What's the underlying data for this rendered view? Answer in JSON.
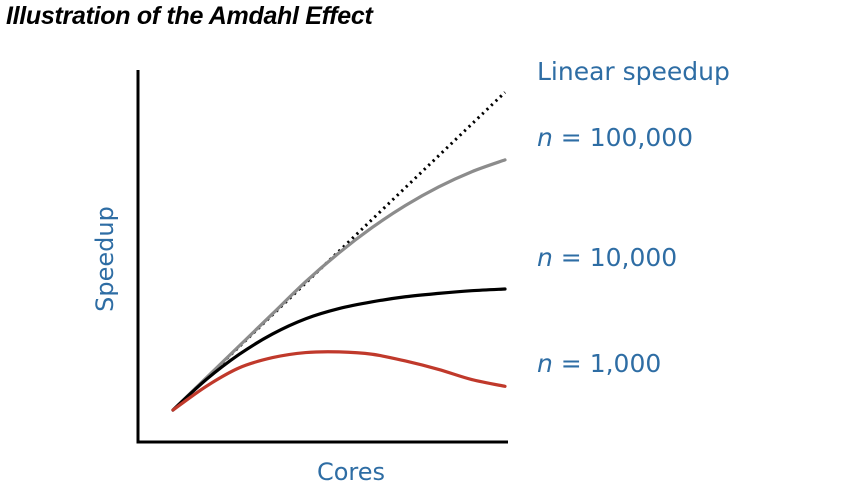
{
  "title": "Illustration of the Amdahl Effect",
  "chart_data": {
    "type": "line",
    "title": "Illustration of the Amdahl Effect",
    "xlabel": "Cores",
    "ylabel": "Speedup",
    "x_ticks": [],
    "y_ticks": [],
    "xlim": [
      0,
      100
    ],
    "ylim": [
      0,
      100
    ],
    "grid": false,
    "legend": "inline-right",
    "colors": {
      "text": "#2e6da4",
      "axis": "#000000"
    },
    "series": [
      {
        "name": "Linear speedup",
        "label_lines": [
          "Linear speedup"
        ],
        "color": "#000000",
        "dash": "dotted",
        "points": [
          [
            0,
            0
          ],
          [
            50,
            47
          ],
          [
            100,
            94
          ]
        ]
      },
      {
        "name": "n = 100,000",
        "label_lines": [
          "n",
          " = 100,000"
        ],
        "color": "#8c8c8c",
        "dash": "solid",
        "points": [
          [
            0,
            0
          ],
          [
            10,
            9.5
          ],
          [
            20,
            19
          ],
          [
            30,
            28.5
          ],
          [
            40,
            38
          ],
          [
            50,
            46.5
          ],
          [
            60,
            54
          ],
          [
            70,
            60.5
          ],
          [
            80,
            66
          ],
          [
            90,
            70.5
          ],
          [
            100,
            74
          ]
        ]
      },
      {
        "name": "n = 10,000",
        "label_lines": [
          "n",
          " = 10,000"
        ],
        "color": "#000000",
        "dash": "solid",
        "points": [
          [
            0,
            0
          ],
          [
            10,
            9
          ],
          [
            20,
            16.5
          ],
          [
            30,
            22.5
          ],
          [
            40,
            27
          ],
          [
            50,
            30
          ],
          [
            60,
            32
          ],
          [
            70,
            33.5
          ],
          [
            80,
            34.5
          ],
          [
            90,
            35.3
          ],
          [
            100,
            35.8
          ]
        ]
      },
      {
        "name": "n = 1,000",
        "label_lines": [
          "n",
          " = 1,000"
        ],
        "color": "#c0392b",
        "dash": "solid",
        "points": [
          [
            0,
            0
          ],
          [
            10,
            7
          ],
          [
            20,
            12.5
          ],
          [
            30,
            15.5
          ],
          [
            40,
            17
          ],
          [
            50,
            17.2
          ],
          [
            60,
            16.5
          ],
          [
            70,
            14.5
          ],
          [
            80,
            12
          ],
          [
            90,
            9
          ],
          [
            100,
            7
          ]
        ]
      }
    ]
  }
}
